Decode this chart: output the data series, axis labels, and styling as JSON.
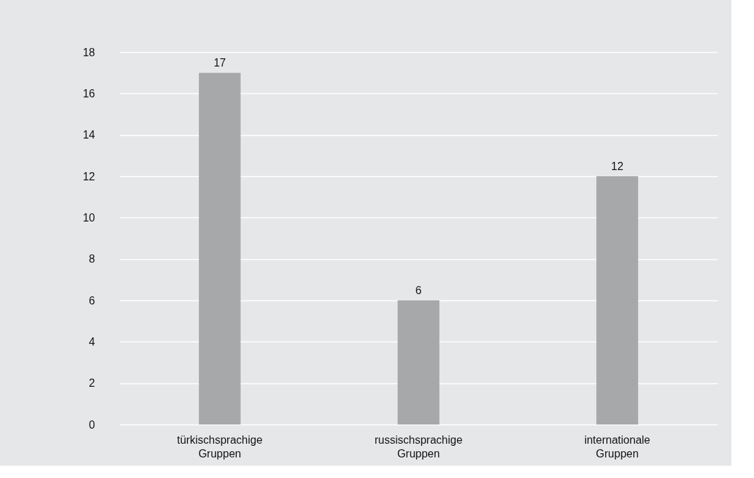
{
  "chart_data": {
    "type": "bar",
    "categories": [
      "türkischsprachige Gruppen",
      "russischsprachige Gruppen",
      "internationale Gruppen"
    ],
    "values": [
      17,
      6,
      12
    ],
    "color": "#a7a8aa",
    "ylim": [
      0,
      18
    ],
    "yticks": [
      0,
      2,
      4,
      6,
      8,
      10,
      12,
      14,
      16,
      18
    ],
    "grid": "y",
    "data_labels": true
  }
}
